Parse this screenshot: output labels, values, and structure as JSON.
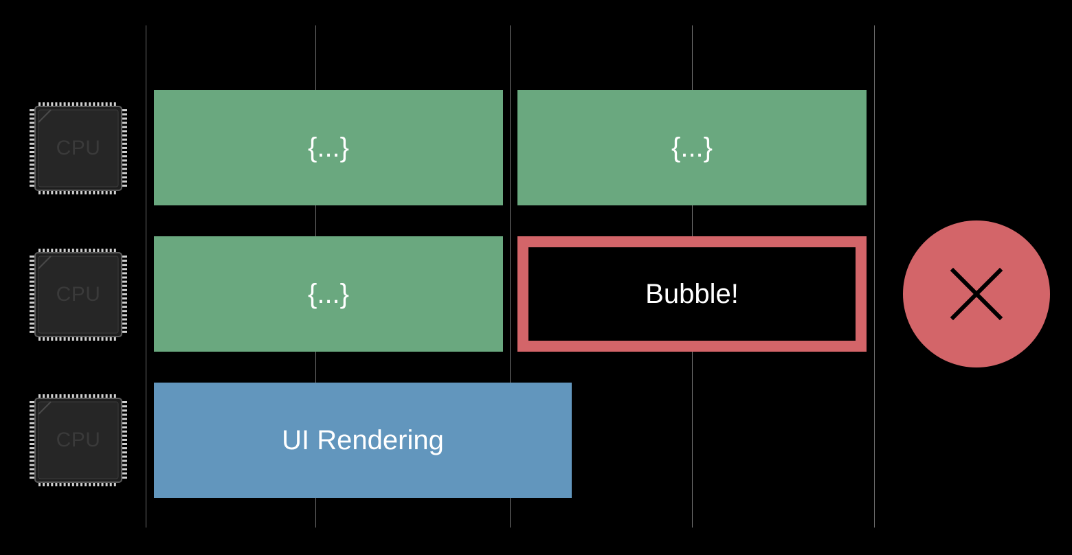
{
  "cpus": [
    {
      "label": "CPU"
    },
    {
      "label": "CPU"
    },
    {
      "label": "CPU"
    }
  ],
  "tasks": {
    "row1_left": "{...}",
    "row1_right": "{...}",
    "row2_left": "{...}",
    "row2_right": "Bubble!",
    "row3": "UI Rendering"
  },
  "status_icon": "close-icon",
  "colors": {
    "background": "#000000",
    "work_block": "#6aa87f",
    "ui_block": "#6296bd",
    "bubble_border": "#d36569",
    "status_circle": "#d36569",
    "gridline": "#6f6f6f"
  }
}
